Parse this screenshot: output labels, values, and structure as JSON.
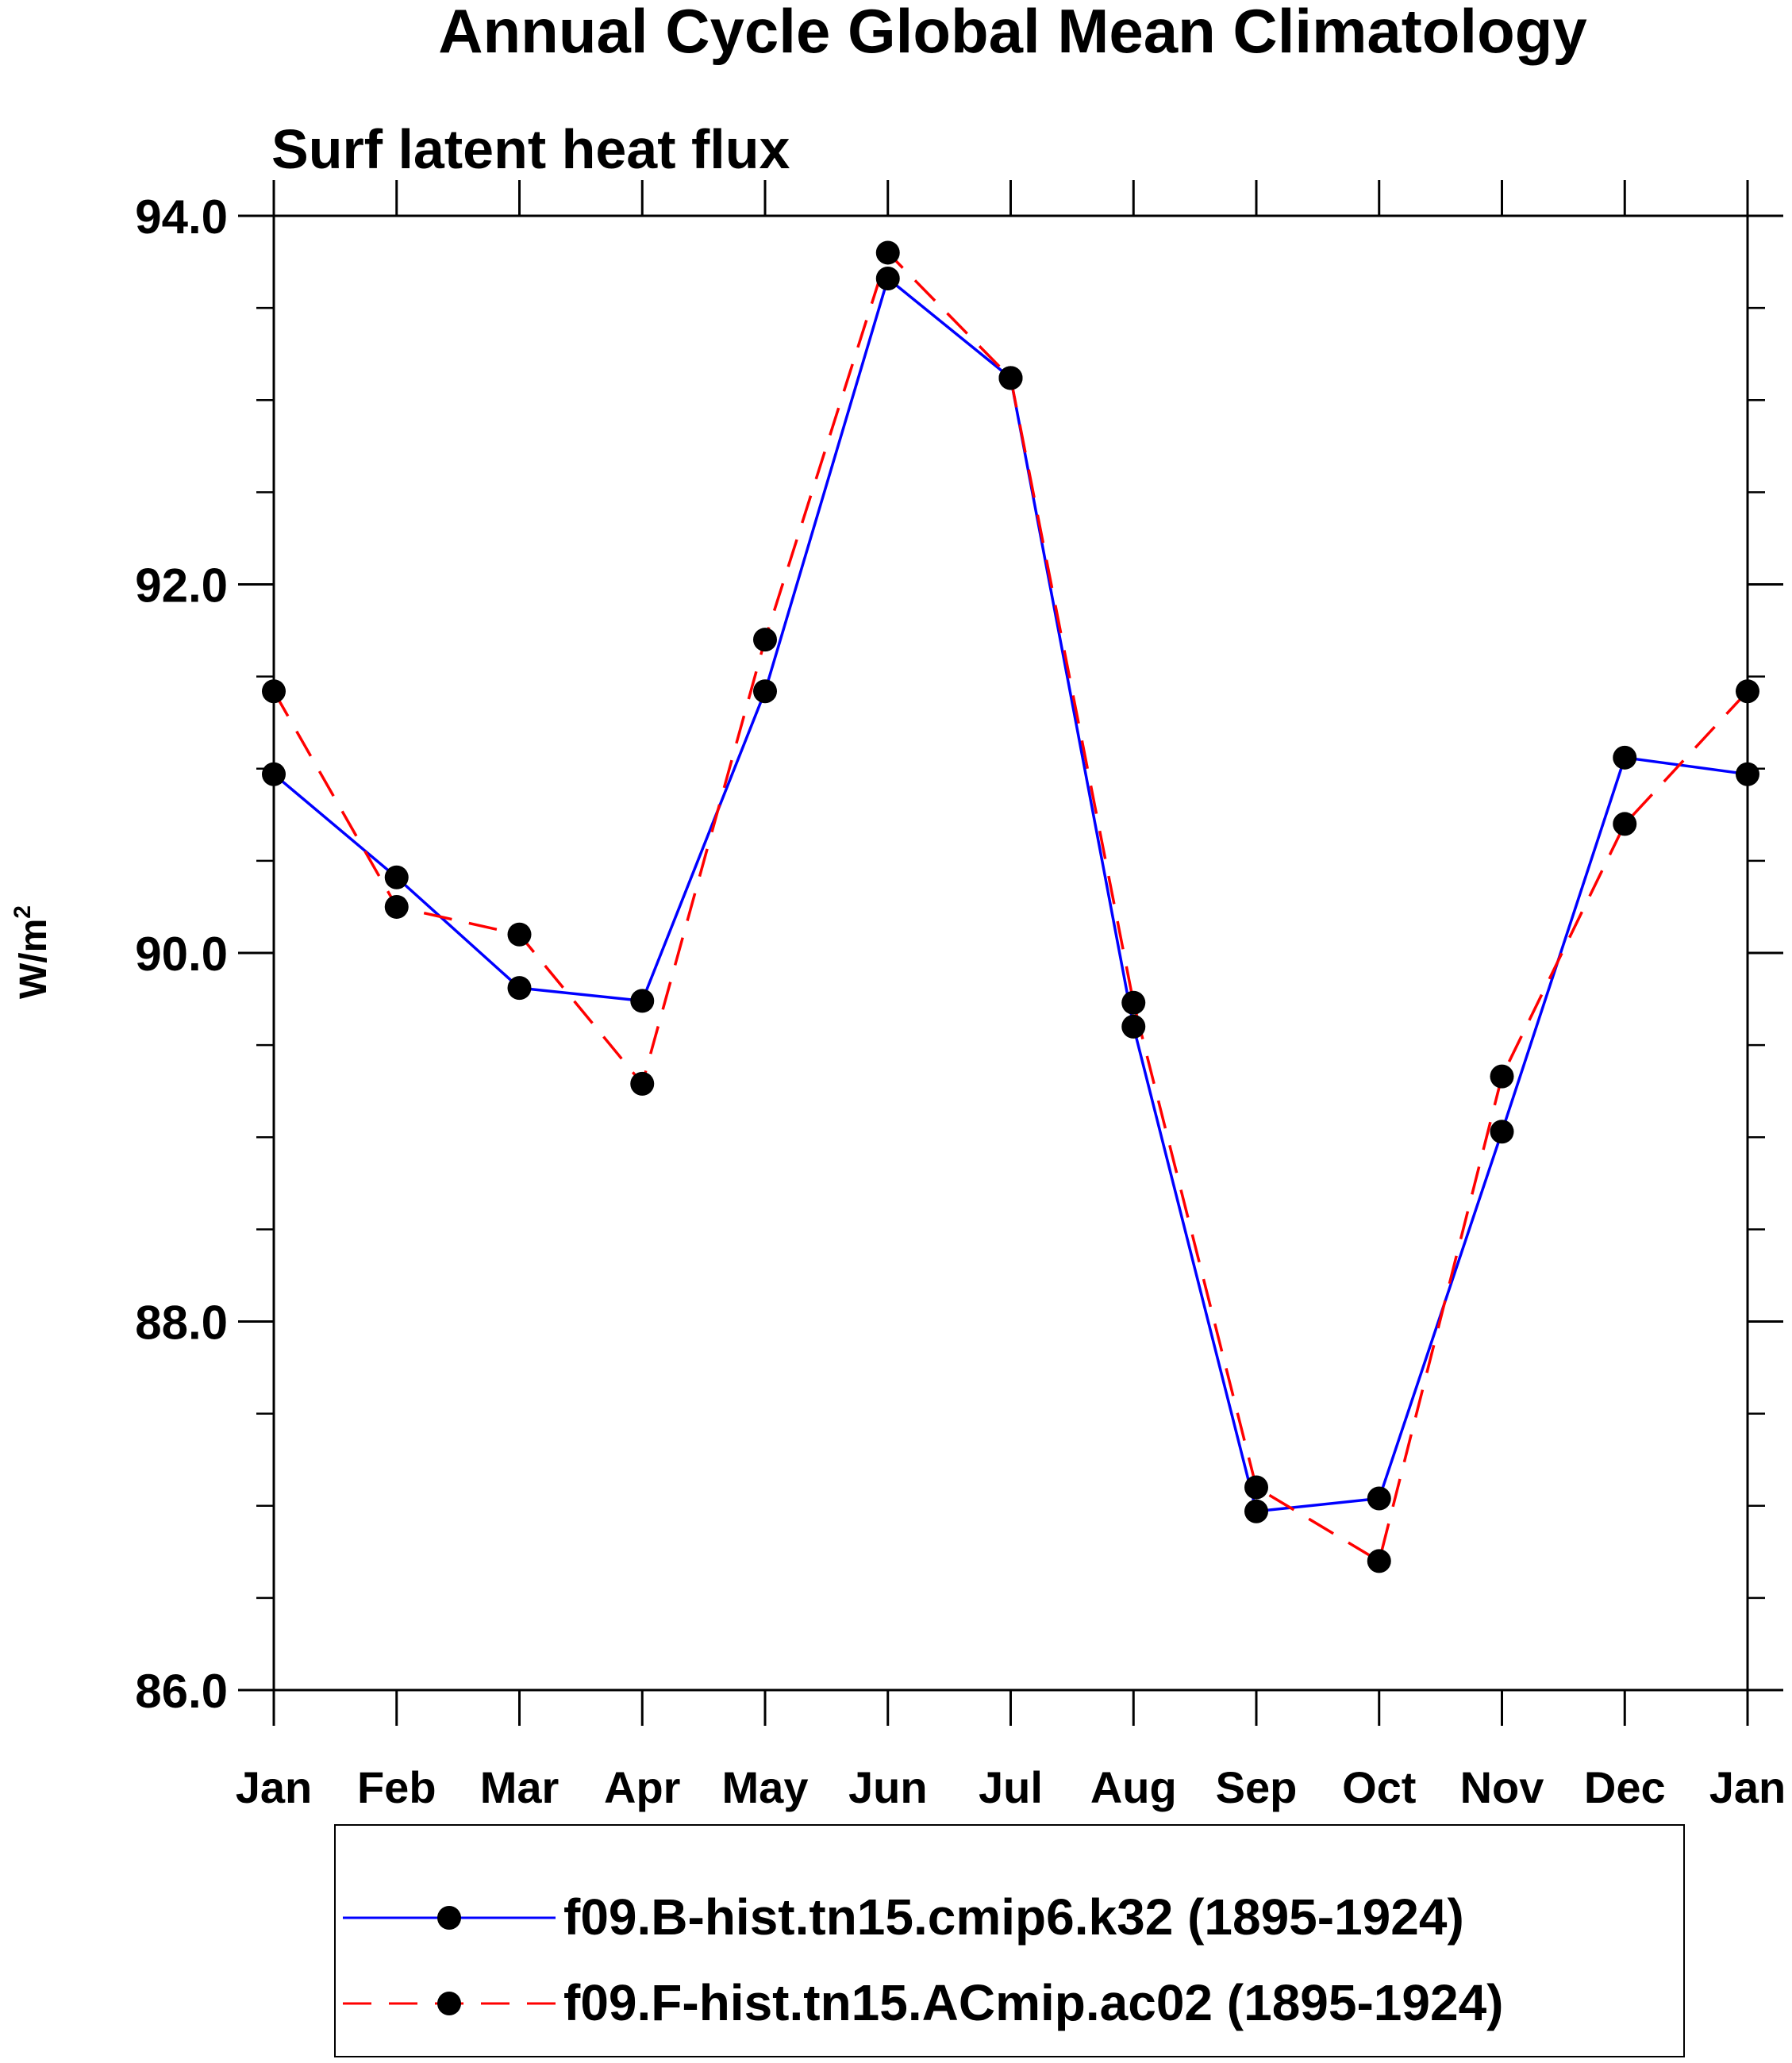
{
  "chart_data": {
    "type": "line",
    "title": "Annual Cycle Global Mean Climatology",
    "subtitle": "Surf latent heat flux",
    "xlabel": "",
    "ylabel_base": "W/m",
    "ylabel_sup": "2",
    "ylim": [
      86.0,
      94.0
    ],
    "yticks_major": [
      86.0,
      88.0,
      90.0,
      92.0,
      94.0
    ],
    "yticks_major_labels": [
      "86.0",
      "88.0",
      "90.0",
      "92.0",
      "94.0"
    ],
    "yticks_minor_step": 0.5,
    "categories": [
      "Jan",
      "Feb",
      "Mar",
      "Apr",
      "May",
      "Jun",
      "Jul",
      "Aug",
      "Sep",
      "Oct",
      "Nov",
      "Dec",
      "Jan"
    ],
    "series": [
      {
        "name": "f09.B-hist.tn15.cmip6.k32 (1895-1924)",
        "color": "#0000ff",
        "dash": "solid",
        "values": [
          90.97,
          90.41,
          89.81,
          89.74,
          91.42,
          93.66,
          93.12,
          89.6,
          86.97,
          87.04,
          89.03,
          91.06,
          90.97
        ]
      },
      {
        "name": "f09.F-hist.tn15.ACmip.ac02 (1895-1924)",
        "color": "#ff0000",
        "dash": "dashed",
        "values": [
          91.42,
          90.25,
          90.1,
          89.29,
          91.7,
          93.8,
          93.12,
          89.73,
          87.1,
          86.7,
          89.33,
          90.7,
          91.42
        ]
      }
    ],
    "legend": {
      "placement": "bottom-center",
      "entries": [
        "f09.B-hist.tn15.cmip6.k32 (1895-1924)",
        "f09.F-hist.tn15.ACmip.ac02 (1895-1924)"
      ]
    },
    "grid": false
  }
}
